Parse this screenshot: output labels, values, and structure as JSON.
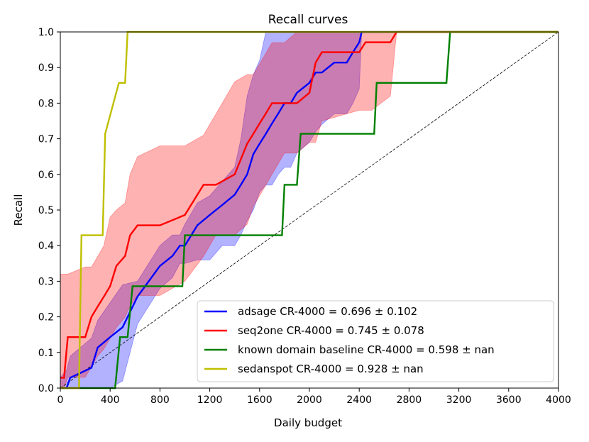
{
  "chart_data": {
    "type": "line",
    "title": "Recall curves",
    "xlabel": "Daily budget",
    "ylabel": "Recall",
    "xlim": [
      0,
      4000
    ],
    "ylim": [
      0,
      1.0
    ],
    "xticks": [
      0,
      400,
      800,
      1200,
      1600,
      2000,
      2400,
      2800,
      3200,
      3600,
      4000
    ],
    "yticks": [
      0.0,
      0.1,
      0.2,
      0.3,
      0.4,
      0.5,
      0.6,
      0.7,
      0.8,
      0.9,
      1.0
    ],
    "grid": false,
    "legend_position": "lower-right",
    "reference_line": {
      "name": "random baseline",
      "style": "dashed",
      "x": [
        0,
        4000
      ],
      "y": [
        0,
        1
      ]
    },
    "series": [
      {
        "name": "adsage CR-4000 = 0.696 ± 0.102",
        "color": "#0000ff",
        "x": [
          0,
          50,
          80,
          250,
          300,
          400,
          500,
          620,
          800,
          900,
          960,
          1000,
          1100,
          1200,
          1300,
          1400,
          1450,
          1500,
          1550,
          1600,
          1650,
          1700,
          1750,
          1800,
          1850,
          1900,
          2000,
          2050,
          2100,
          2200,
          2300,
          2350,
          2400,
          2420,
          4000
        ],
        "y": [
          0,
          0,
          0.029,
          0.057,
          0.114,
          0.143,
          0.171,
          0.257,
          0.343,
          0.371,
          0.4,
          0.4,
          0.457,
          0.486,
          0.514,
          0.543,
          0.571,
          0.6,
          0.657,
          0.686,
          0.714,
          0.743,
          0.771,
          0.8,
          0.8,
          0.829,
          0.857,
          0.886,
          0.886,
          0.914,
          0.914,
          0.943,
          0.971,
          1.0,
          1.0
        ],
        "band_upper": [
          0.03,
          0.05,
          0.09,
          0.14,
          0.19,
          0.24,
          0.29,
          0.3,
          0.4,
          0.43,
          0.43,
          0.46,
          0.52,
          0.54,
          0.58,
          0.62,
          0.7,
          0.82,
          0.88,
          0.92,
          1.0,
          1.0,
          1.0,
          1.0,
          1.0,
          1.0,
          1.0,
          1.0,
          1.0,
          1.0,
          1.0,
          1.0,
          1.0,
          1.0,
          1.0
        ],
        "band_lower": [
          0,
          0,
          0,
          0,
          0,
          0,
          0.02,
          0.18,
          0.28,
          0.31,
          0.35,
          0.35,
          0.36,
          0.36,
          0.4,
          0.4,
          0.43,
          0.47,
          0.5,
          0.55,
          0.57,
          0.57,
          0.6,
          0.62,
          0.62,
          0.66,
          0.69,
          0.72,
          0.74,
          0.77,
          0.77,
          0.8,
          0.84,
          1.0,
          1.0
        ]
      },
      {
        "name": "seq2one CR-4000 = 0.745 ± 0.078",
        "color": "#ff0000",
        "x": [
          0,
          30,
          60,
          200,
          250,
          300,
          350,
          400,
          450,
          520,
          560,
          620,
          800,
          1000,
          1150,
          1200,
          1250,
          1400,
          1500,
          1550,
          1600,
          1650,
          1700,
          1800,
          1900,
          2000,
          2050,
          2100,
          2400,
          2450,
          2500,
          2650,
          2700,
          4000
        ],
        "y": [
          0.029,
          0.029,
          0.143,
          0.143,
          0.2,
          0.229,
          0.257,
          0.286,
          0.343,
          0.371,
          0.429,
          0.457,
          0.457,
          0.486,
          0.571,
          0.571,
          0.571,
          0.6,
          0.686,
          0.714,
          0.743,
          0.771,
          0.8,
          0.8,
          0.8,
          0.829,
          0.914,
          0.943,
          0.943,
          0.971,
          0.971,
          0.971,
          1.0,
          1.0
        ],
        "band_upper": [
          0.32,
          0.32,
          0.32,
          0.34,
          0.34,
          0.37,
          0.4,
          0.48,
          0.5,
          0.52,
          0.6,
          0.65,
          0.68,
          0.68,
          0.71,
          0.74,
          0.77,
          0.86,
          0.88,
          0.88,
          0.91,
          0.94,
          0.97,
          0.97,
          1.0,
          1.0,
          1.0,
          1.0,
          1.0,
          1.0,
          1.0,
          1.0,
          1.0,
          1.0
        ],
        "band_lower": [
          0,
          0,
          0.03,
          0.03,
          0.06,
          0.09,
          0.11,
          0.14,
          0.17,
          0.2,
          0.23,
          0.26,
          0.26,
          0.3,
          0.37,
          0.4,
          0.43,
          0.43,
          0.46,
          0.51,
          0.54,
          0.57,
          0.6,
          0.66,
          0.66,
          0.69,
          0.69,
          0.75,
          0.78,
          0.78,
          0.78,
          0.82,
          1.0,
          1.0
        ]
      },
      {
        "name": "known domain baseline CR-4000 = 0.598 ± nan",
        "color": "#008000",
        "x": [
          0,
          440,
          480,
          540,
          580,
          980,
          1000,
          1780,
          1800,
          1900,
          1930,
          2520,
          2540,
          3100,
          3130,
          4000
        ],
        "y": [
          0,
          0,
          0.143,
          0.143,
          0.286,
          0.286,
          0.429,
          0.429,
          0.571,
          0.571,
          0.714,
          0.714,
          0.857,
          0.857,
          1.0,
          1.0
        ]
      },
      {
        "name": "sedanspot CR-4000 = 0.928 ± nan",
        "color": "#bfbf00",
        "x": [
          0,
          150,
          170,
          340,
          360,
          470,
          490,
          520,
          540,
          4000
        ],
        "y": [
          0,
          0,
          0.429,
          0.429,
          0.714,
          0.857,
          0.857,
          0.857,
          1.0,
          1.0
        ]
      }
    ]
  }
}
